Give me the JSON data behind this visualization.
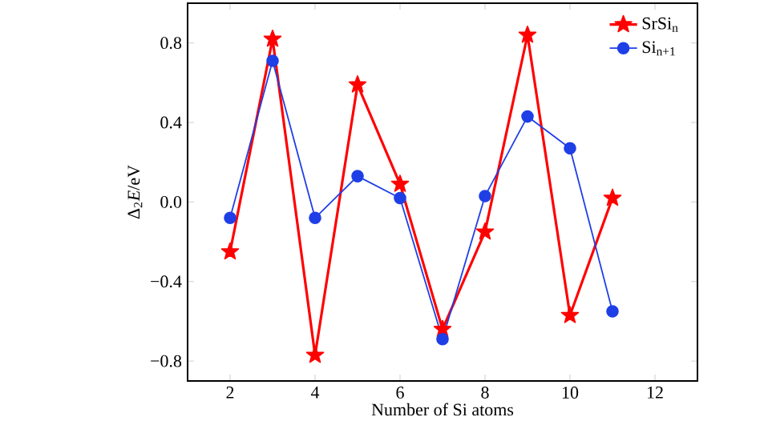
{
  "chart_data": {
    "type": "line",
    "xlabel": "Number of Si atoms",
    "ylabel": "Δ$_{2}$*E*/eV",
    "x": [
      2,
      3,
      4,
      5,
      6,
      7,
      8,
      9,
      10,
      11
    ],
    "series": [
      {
        "name": "SrSi$_{n}$",
        "color": "#ff0000",
        "marker": "star",
        "values": [
          -0.25,
          0.82,
          -0.77,
          0.59,
          0.09,
          -0.64,
          -0.15,
          0.84,
          -0.57,
          0.02
        ]
      },
      {
        "name": "Si$_{n+1}$",
        "color": "#1f3fe6",
        "marker": "circle",
        "values": [
          -0.08,
          0.71,
          -0.08,
          0.13,
          0.02,
          -0.69,
          0.03,
          0.43,
          0.27,
          -0.55
        ]
      }
    ],
    "xlim": [
      1,
      13
    ],
    "ylim": [
      -0.9,
      1.0
    ],
    "xticks": [
      2,
      4,
      6,
      8,
      10,
      12
    ],
    "yticks": [
      {
        "value": -0.8,
        "label": "−0.8"
      },
      {
        "value": -0.4,
        "label": "−0.4"
      },
      {
        "value": 0.0,
        "label": "0.0"
      },
      {
        "value": 0.4,
        "label": "0.4"
      },
      {
        "value": 0.8,
        "label": "0.8"
      }
    ],
    "legend": "top right",
    "grid": false
  }
}
